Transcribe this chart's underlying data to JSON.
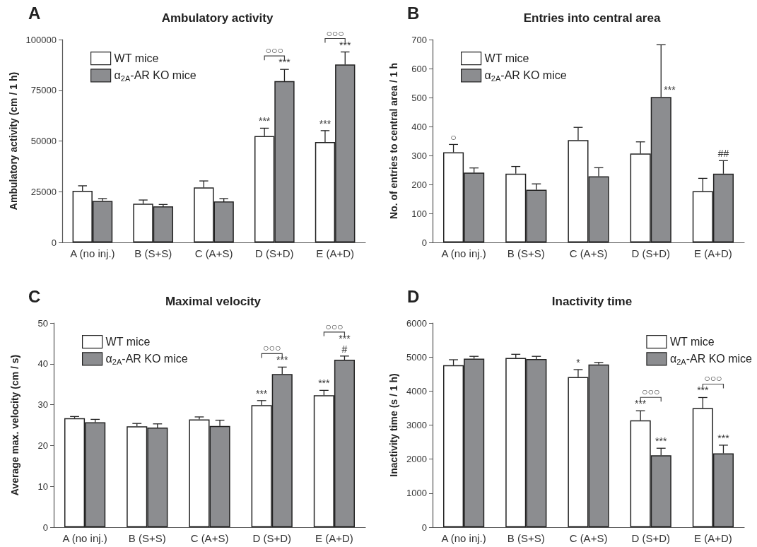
{
  "chart_data": [
    {
      "type": "bar",
      "title": "Ambulatory activity",
      "ylabel": "Ambulatory activity (cm / 1 h)",
      "categories": [
        "A (no inj.)",
        "B (S+S)",
        "C (A+S)",
        "D (S+D)",
        "E (A+D)"
      ],
      "series": [
        {
          "name": "WT mice",
          "color": "#ffffff",
          "values": [
            25400,
            19100,
            27100,
            52400,
            49500
          ],
          "errors": [
            [
              25400,
              27900
            ],
            [
              19100,
              20900
            ],
            [
              27100,
              30300
            ],
            [
              52400,
              56300
            ],
            [
              49500,
              55100
            ]
          ]
        },
        {
          "name": "α$_{2A}$-AR KO mice",
          "color": "#8c8d90",
          "values": [
            20500,
            17800,
            20200,
            79500,
            87700
          ],
          "errors": [
            [
              20500,
              21600
            ],
            [
              17800,
              18700
            ],
            [
              20200,
              21600
            ],
            [
              79500,
              85300
            ],
            [
              87700,
              93900
            ]
          ]
        }
      ],
      "ylim": [
        0,
        100000
      ],
      "yticks": [
        0,
        25000,
        50000,
        75000,
        100000
      ],
      "grid": false,
      "legend": "top left",
      "annotations": [
        "A",
        {
          "text": "***",
          "x": "D (S+D)",
          "y": 52400
        },
        {
          "text": "***",
          "x": "E (A+D)",
          "y": 49500
        },
        {
          "text": "***",
          "x": "D (S+D)",
          "y": 79500
        },
        {
          "text": "○○○",
          "x": "D (S+D)",
          "y": 79500
        },
        {
          "text": "***",
          "x": "E (A+D)",
          "y": 87700
        },
        {
          "text": "○○○",
          "x": "E (A+D)",
          "y": 87700
        }
      ]
    },
    {
      "type": "bar",
      "title": "Entries into central area",
      "ylabel": "No. of entries to central area / 1 h",
      "categories": [
        "A (no inj.)",
        "B (S+S)",
        "C (A+S)",
        "D (S+D)",
        "E (A+D)"
      ],
      "series": [
        {
          "name": "WT mice",
          "color": "#ffffff",
          "values": [
            311,
            237,
            353,
            307,
            177
          ],
          "errors": [
            [
              311,
              338
            ],
            [
              237,
              262
            ],
            [
              353,
              397
            ],
            [
              307,
              347
            ],
            [
              177,
              221
            ]
          ]
        },
        {
          "name": "α$_{2A}$-AR KO mice",
          "color": "#8c8d90",
          "values": [
            241,
            182,
            228,
            502,
            237
          ],
          "errors": [
            [
              241,
              257
            ],
            [
              182,
              202
            ],
            [
              228,
              258
            ],
            [
              502,
              682
            ],
            [
              237,
              282
            ]
          ]
        }
      ],
      "ylim": [
        0,
        700
      ],
      "yticks": [
        0,
        100,
        200,
        300,
        400,
        500,
        600,
        700
      ],
      "grid": false,
      "legend": "top left",
      "annotations": [
        "B",
        {
          "text": "○",
          "x": "A (no inj.)",
          "y": 311
        },
        {
          "text": "***",
          "x": "D (S+D)",
          "y": 502
        },
        {
          "text": "##",
          "x": "E (A+D)",
          "y": 237
        }
      ]
    },
    {
      "type": "bar",
      "title": "Maximal velocity",
      "ylabel": "Average max. velocity (cm / s)",
      "categories": [
        "A (no inj.)",
        "B (S+S)",
        "C (A+S)",
        "D (S+D)",
        "E (A+D)"
      ],
      "series": [
        {
          "name": "WT mice",
          "color": "#ffffff",
          "values": [
            26.7,
            24.7,
            26.4,
            29.9,
            32.3
          ],
          "errors": [
            [
              26.7,
              27.1
            ],
            [
              24.7,
              25.4
            ],
            [
              26.4,
              27.0
            ],
            [
              29.9,
              31.0
            ],
            [
              32.3,
              33.5
            ]
          ]
        },
        {
          "name": "α$_{2A}$-AR KO mice",
          "color": "#8c8d90",
          "values": [
            25.7,
            24.4,
            24.8,
            37.5,
            41.0
          ],
          "errors": [
            [
              25.7,
              26.4
            ],
            [
              24.4,
              25.3
            ],
            [
              24.8,
              26.2
            ],
            [
              37.5,
              39.2
            ],
            [
              41.0,
              41.9
            ]
          ]
        }
      ],
      "ylim": [
        0,
        50
      ],
      "yticks": [
        0,
        10,
        20,
        30,
        40,
        50
      ],
      "grid": false,
      "legend": "top left",
      "annotations": [
        "C",
        {
          "text": "***",
          "x": "D (S+D)",
          "y": 29.9
        },
        {
          "text": "***",
          "x": "E (A+D)",
          "y": 32.3
        },
        {
          "text": "***",
          "x": "D (S+D)",
          "y": 37.5
        },
        {
          "text": "○○○",
          "x": "D (S+D)",
          "y": 37.5
        },
        {
          "text": "#",
          "x": "E (A+D)",
          "y": 41.0
        },
        {
          "text": "***",
          "x": "E (A+D)",
          "y": 41.0
        },
        {
          "text": "○○○",
          "x": "E (A+D)",
          "y": 41.0
        }
      ]
    },
    {
      "type": "bar",
      "title": "Inactivity time",
      "ylabel": "Inactivity time (s / 1 h)",
      "categories": [
        "A (no inj.)",
        "B (S+S)",
        "C (A+S)",
        "D (S+D)",
        "E (A+D)"
      ],
      "series": [
        {
          "name": "WT mice",
          "color": "#ffffff",
          "values": [
            4760,
            4970,
            4410,
            3140,
            3500
          ],
          "errors": [
            [
              4760,
              4920
            ],
            [
              4970,
              5080
            ],
            [
              4410,
              4630
            ],
            [
              3140,
              3420
            ],
            [
              3500,
              3810
            ]
          ]
        },
        {
          "name": "α$_{2A}$-AR KO mice",
          "color": "#8c8d90",
          "values": [
            4950,
            4940,
            4780,
            2110,
            2170
          ],
          "errors": [
            [
              4950,
              5020
            ],
            [
              4940,
              5020
            ],
            [
              4780,
              4840
            ],
            [
              2110,
              2320
            ],
            [
              2170,
              2410
            ]
          ]
        }
      ],
      "ylim": [
        0,
        6000
      ],
      "yticks": [
        0,
        1000,
        2000,
        3000,
        4000,
        5000,
        6000
      ],
      "grid": false,
      "legend": "top right",
      "annotations": [
        "D",
        {
          "text": "*",
          "x": "C (A+S)",
          "y": 4410
        },
        {
          "text": "***",
          "x": "D (S+D)",
          "y": 3140
        },
        {
          "text": "○○○",
          "x": "D (S+D)",
          "y": 3140
        },
        {
          "text": "***",
          "x": "E (A+D)",
          "y": 3500
        },
        {
          "text": "○○○",
          "x": "E (A+D)",
          "y": 3500
        },
        {
          "text": "***",
          "x": "D (S+D)",
          "y": 2110
        },
        {
          "text": "***",
          "x": "E (A+D)",
          "y": 2170
        }
      ]
    }
  ]
}
